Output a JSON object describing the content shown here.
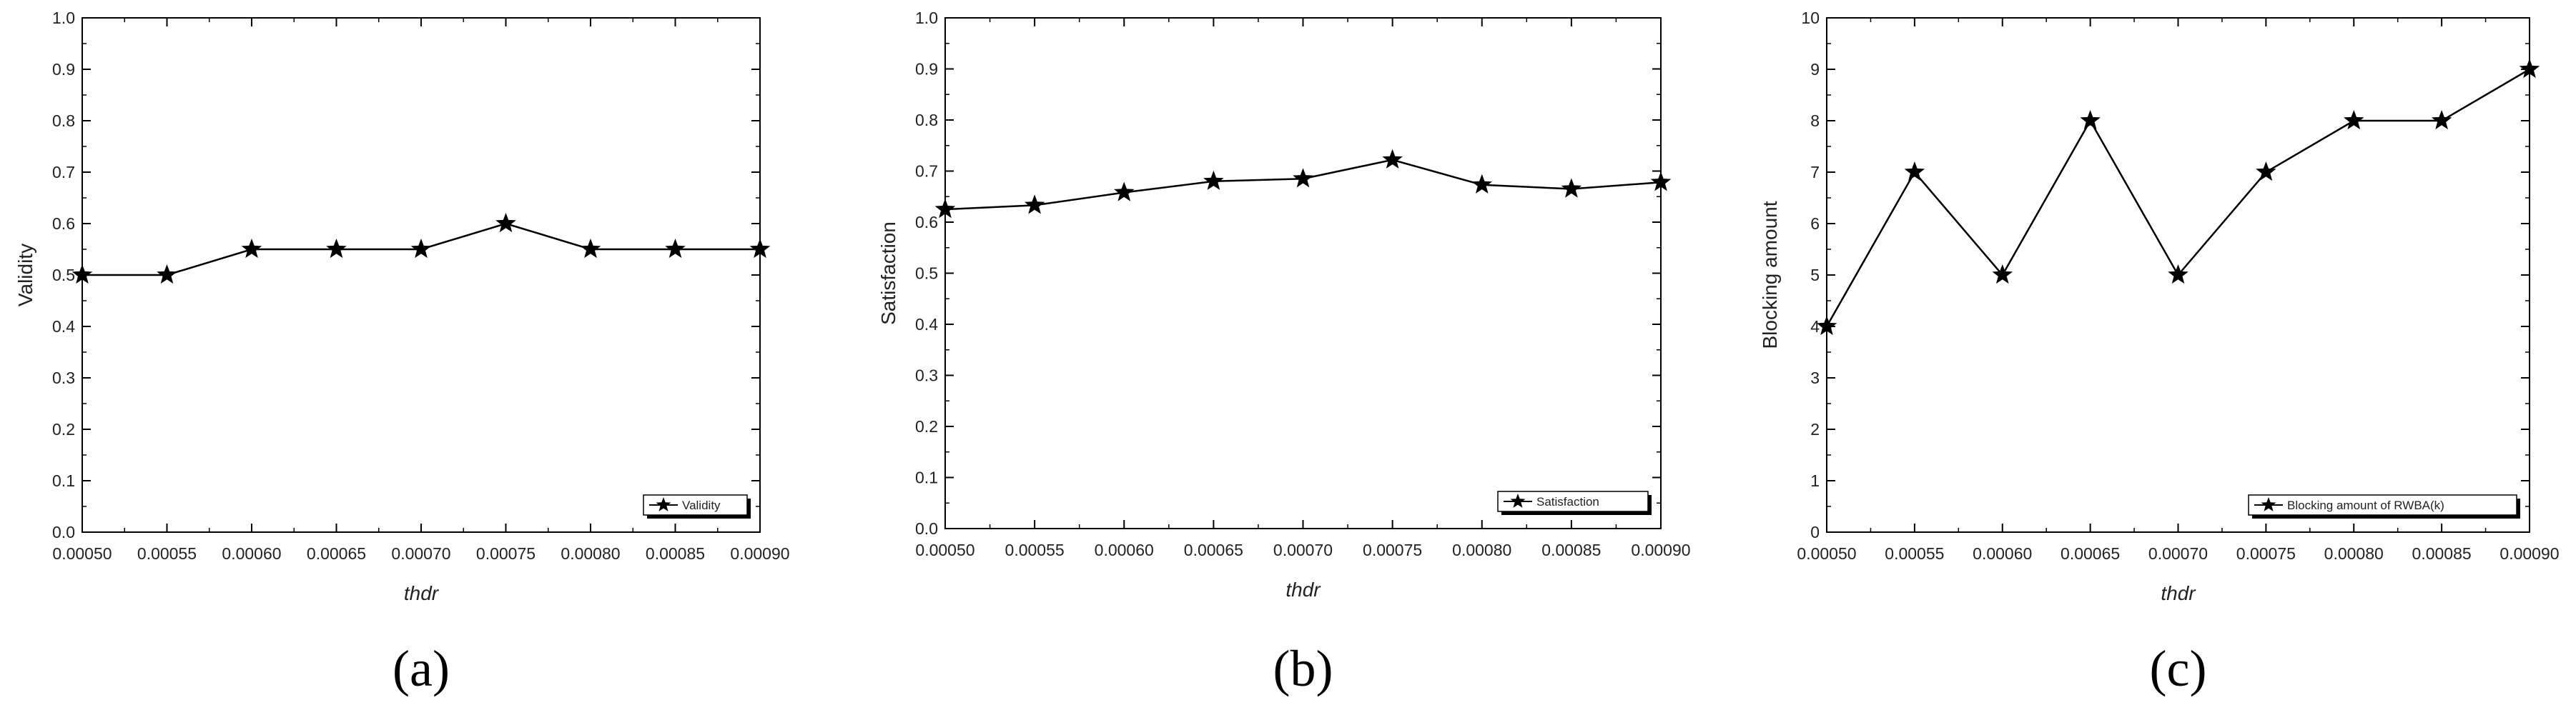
{
  "chart_data": [
    {
      "type": "line",
      "panel_label": "(a)",
      "xlabel": "thdr",
      "ylabel": "Validity",
      "x": [
        0.0005,
        0.00055,
        0.0006,
        0.00065,
        0.0007,
        0.00075,
        0.0008,
        0.00085,
        0.0009
      ],
      "x_tick_labels": [
        "0.00050",
        "0.00055",
        "0.00060",
        "0.00065",
        "0.00070",
        "0.00075",
        "0.00080",
        "0.00085",
        "0.00090"
      ],
      "xlim": [
        0.0005,
        0.0009
      ],
      "ylim": [
        0,
        1
      ],
      "y_ticks": [
        0.0,
        0.1,
        0.2,
        0.3,
        0.4,
        0.5,
        0.6,
        0.7,
        0.8,
        0.9,
        1.0
      ],
      "y_tick_labels": [
        "0.0",
        "0.1",
        "0.2",
        "0.3",
        "0.4",
        "0.5",
        "0.6",
        "0.7",
        "0.8",
        "0.9",
        "1.0"
      ],
      "series": [
        {
          "name": "Validity",
          "marker": "star",
          "color": "#000000",
          "values": [
            0.5,
            0.5,
            0.55,
            0.55,
            0.55,
            0.6,
            0.55,
            0.55,
            0.55
          ]
        }
      ],
      "legend": "bottom-right",
      "grid": false
    },
    {
      "type": "line",
      "panel_label": "(b)",
      "xlabel": "thdr",
      "ylabel": "Satisfaction",
      "x": [
        0.0005,
        0.00055,
        0.0006,
        0.00065,
        0.0007,
        0.00075,
        0.0008,
        0.00085,
        0.0009
      ],
      "x_tick_labels": [
        "0.00050",
        "0.00055",
        "0.00060",
        "0.00065",
        "0.00070",
        "0.00075",
        "0.00080",
        "0.00085",
        "0.00090"
      ],
      "xlim": [
        0.0005,
        0.0009
      ],
      "ylim": [
        0,
        1
      ],
      "y_ticks": [
        0.0,
        0.1,
        0.2,
        0.3,
        0.4,
        0.5,
        0.6,
        0.7,
        0.8,
        0.9,
        1.0
      ],
      "y_tick_labels": [
        "0.0",
        "0.1",
        "0.2",
        "0.3",
        "0.4",
        "0.5",
        "0.6",
        "0.7",
        "0.8",
        "0.9",
        "1.0"
      ],
      "series": [
        {
          "name": "Satisfaction",
          "marker": "star",
          "color": "#000000",
          "values": [
            0.625,
            0.633,
            0.658,
            0.68,
            0.685,
            0.722,
            0.673,
            0.665,
            0.678
          ]
        }
      ],
      "legend": "bottom-right",
      "grid": false
    },
    {
      "type": "line",
      "panel_label": "(c)",
      "xlabel": "thdr",
      "ylabel": "Blocking amount",
      "x": [
        0.0005,
        0.00055,
        0.0006,
        0.00065,
        0.0007,
        0.00075,
        0.0008,
        0.00085,
        0.0009
      ],
      "x_tick_labels": [
        "0.00050",
        "0.00055",
        "0.00060",
        "0.00065",
        "0.00070",
        "0.00075",
        "0.00080",
        "0.00085",
        "0.00090"
      ],
      "xlim": [
        0.0005,
        0.0009
      ],
      "ylim": [
        0,
        10
      ],
      "y_ticks": [
        0,
        1,
        2,
        3,
        4,
        5,
        6,
        7,
        8,
        9,
        10
      ],
      "y_tick_labels": [
        "0",
        "1",
        "2",
        "3",
        "4",
        "5",
        "6",
        "7",
        "8",
        "9",
        "10"
      ],
      "series": [
        {
          "name": "Blocking amount of RWBA(k)",
          "marker": "star",
          "color": "#000000",
          "values": [
            4,
            7,
            5,
            8,
            5,
            7,
            8,
            8,
            9
          ]
        }
      ],
      "legend": "bottom-right",
      "grid": false
    }
  ]
}
